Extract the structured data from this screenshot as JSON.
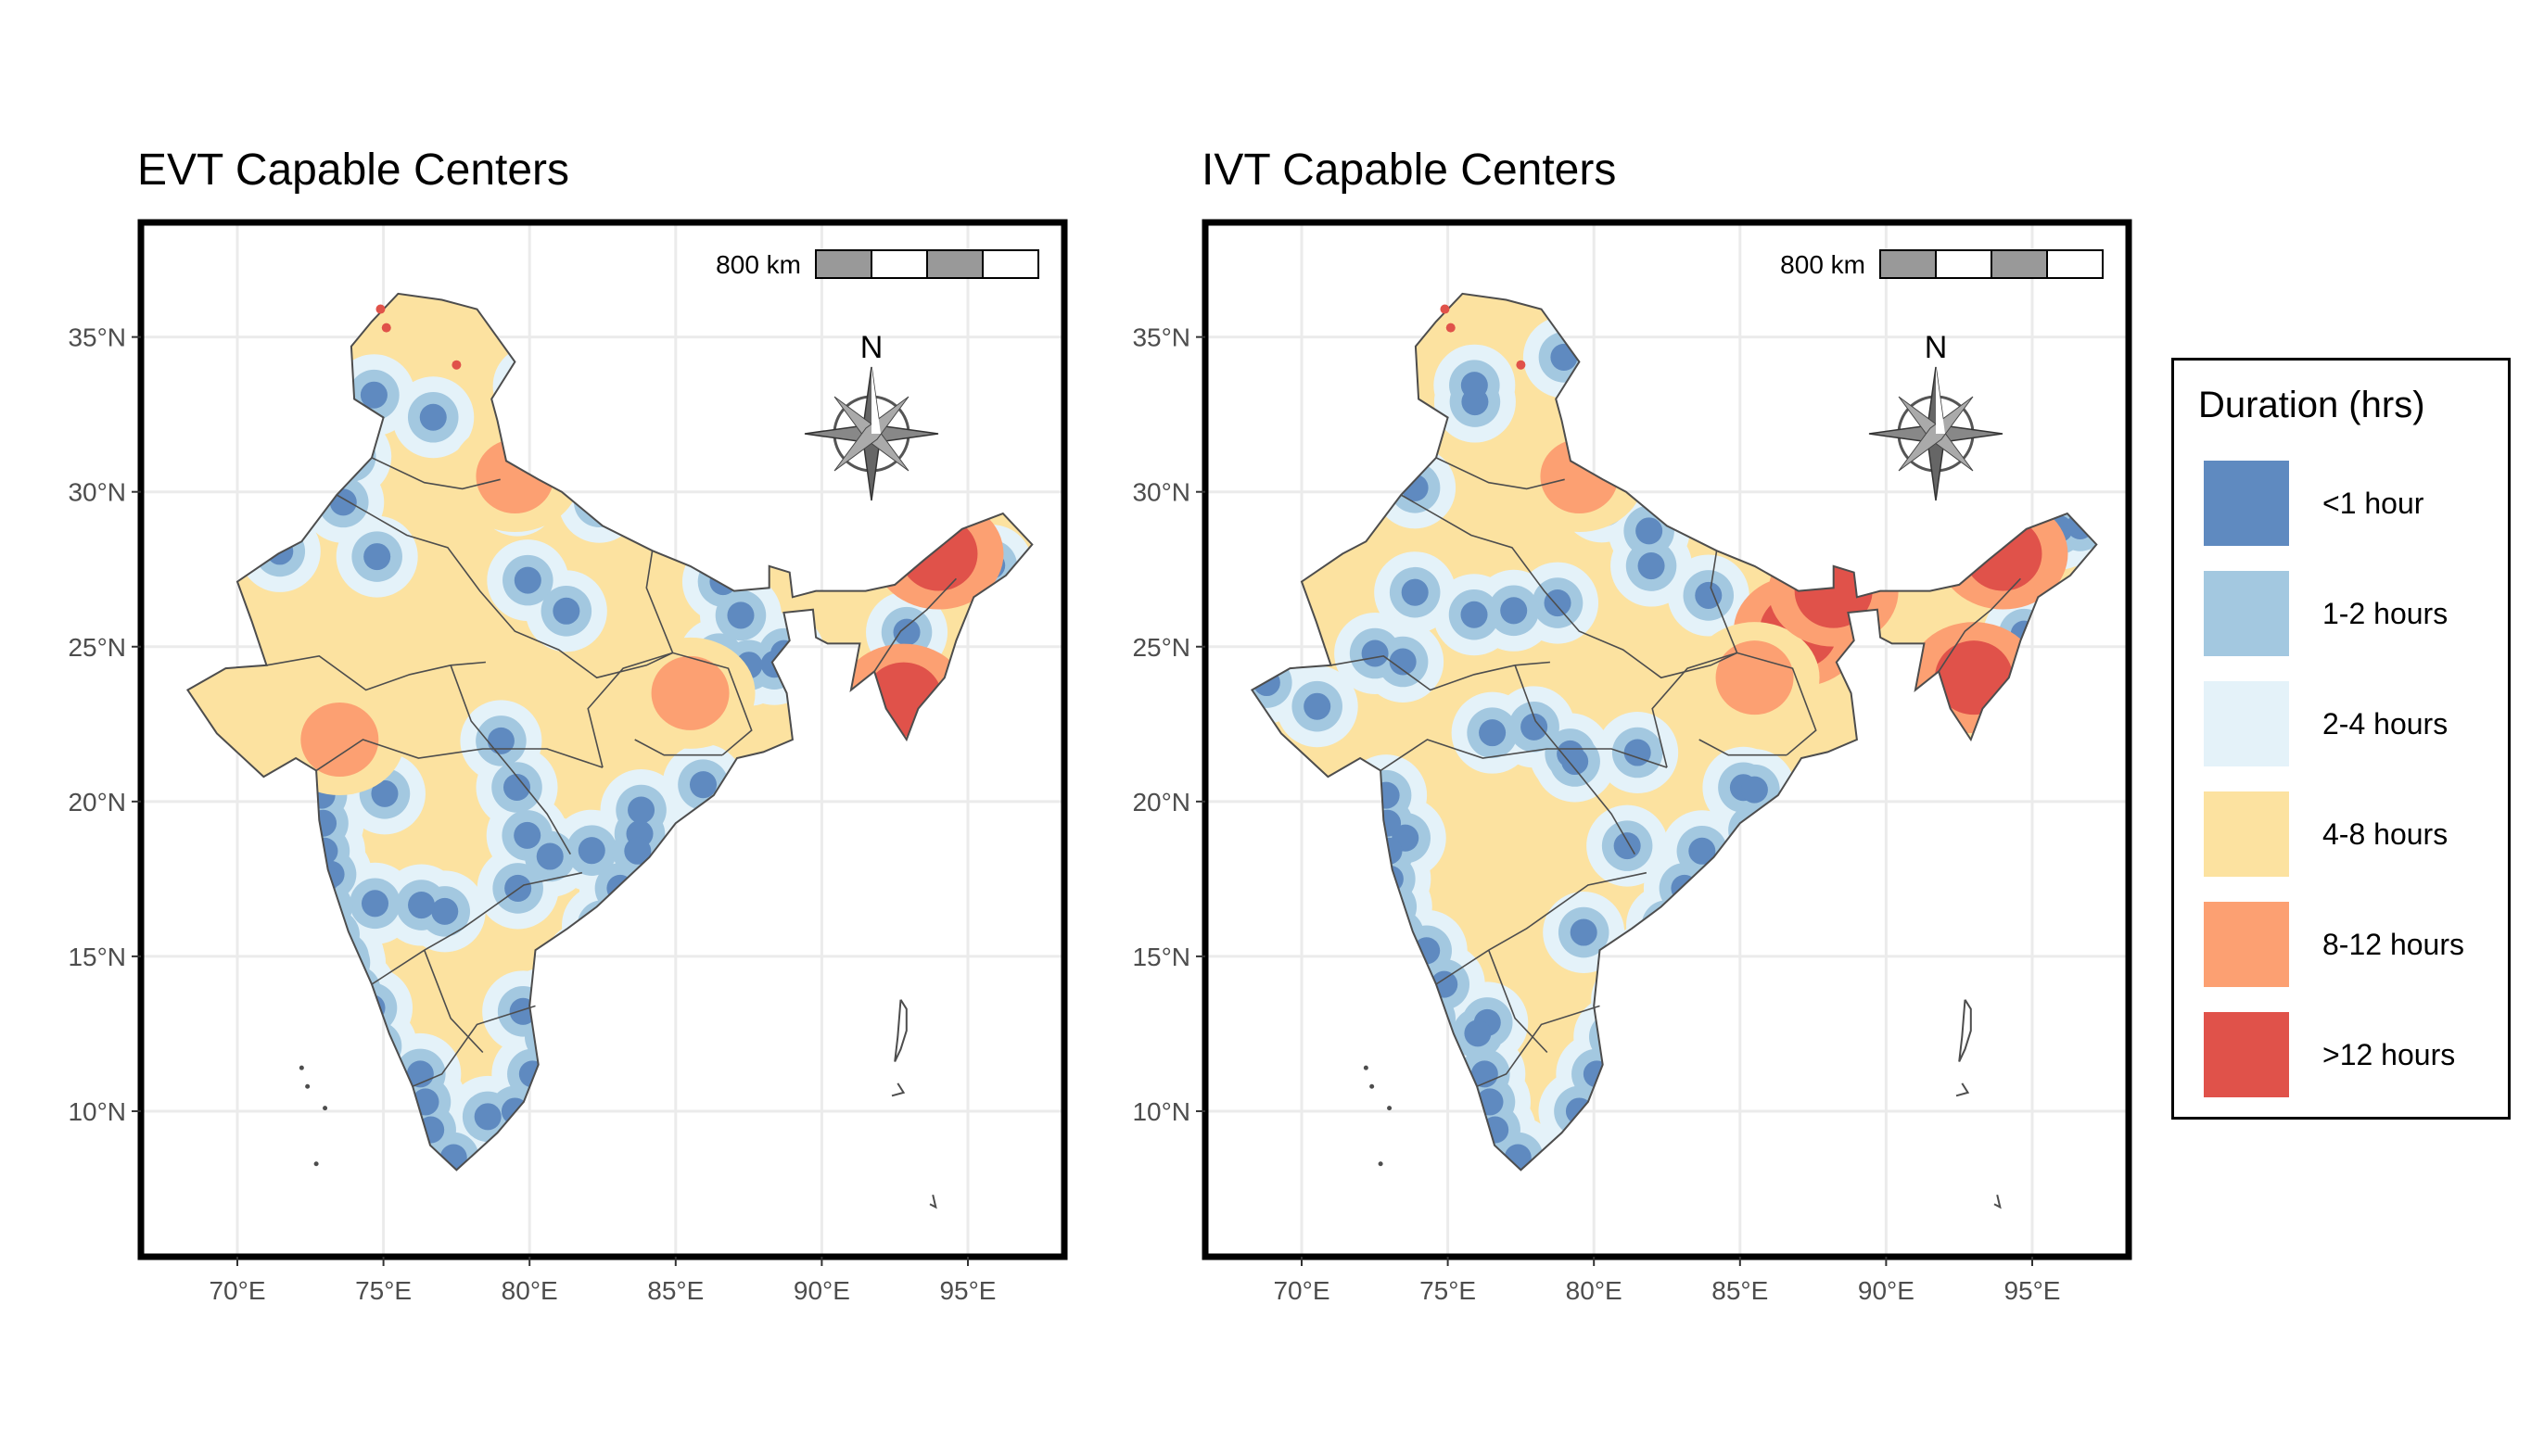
{
  "legend": {
    "title": "Duration (hrs)",
    "items": [
      {
        "label": "<1 hour",
        "color": "#5f8ac0"
      },
      {
        "label": "1-2 hours",
        "color": "#a3c8e0"
      },
      {
        "label": "2-4 hours",
        "color": "#e4f2f9"
      },
      {
        "label": "4-8 hours",
        "color": "#fce2a0"
      },
      {
        "label": "8-12 hours",
        "color": "#fca072"
      },
      {
        "label": ">12 hours",
        "color": "#e0524a"
      }
    ]
  },
  "axes": {
    "lon_ticks": [
      "70°E",
      "75°E",
      "80°E",
      "85°E",
      "90°E",
      "95°E"
    ],
    "lat_ticks": [
      "35°N",
      "30°N",
      "25°N",
      "20°N",
      "15°N",
      "10°N"
    ],
    "lon_values": [
      70,
      75,
      80,
      85,
      90,
      95
    ],
    "lat_values": [
      35,
      30,
      25,
      20,
      15,
      10
    ],
    "lon_range": [
      66.7,
      98.3
    ],
    "lat_range": [
      5.3,
      38.7
    ],
    "grid": true
  },
  "scale_bar_label": "800 km",
  "north_label": "N",
  "panels": [
    {
      "id": "evt",
      "title": "EVT Capable Centers",
      "dominant_classes": [
        "<1 hour",
        "1-2 hours",
        "2-4 hours",
        "4-8 hours"
      ],
      "hotspots": [
        {
          "lon": 94.0,
          "lat": 28.0,
          "class": 5
        },
        {
          "lon": 92.8,
          "lat": 23.3,
          "class": 5
        },
        {
          "lon": 85.5,
          "lat": 23.5,
          "class": 4
        },
        {
          "lon": 73.5,
          "lat": 22.0,
          "class": 4
        },
        {
          "lon": 79.5,
          "lat": 30.5,
          "class": 4
        }
      ]
    },
    {
      "id": "ivt",
      "title": "IVT Capable Centers",
      "dominant_classes": [
        "<1 hour",
        "1-2 hours",
        "2-4 hours",
        "4-8 hours"
      ],
      "hotspots": [
        {
          "lon": 94.0,
          "lat": 28.0,
          "class": 5
        },
        {
          "lon": 93.0,
          "lat": 24.0,
          "class": 5
        },
        {
          "lon": 87.0,
          "lat": 25.5,
          "class": 5
        },
        {
          "lon": 85.5,
          "lat": 24.0,
          "class": 4
        },
        {
          "lon": 88.2,
          "lat": 26.8,
          "class": 5
        },
        {
          "lon": 79.5,
          "lat": 30.5,
          "class": 4
        }
      ]
    }
  ]
}
